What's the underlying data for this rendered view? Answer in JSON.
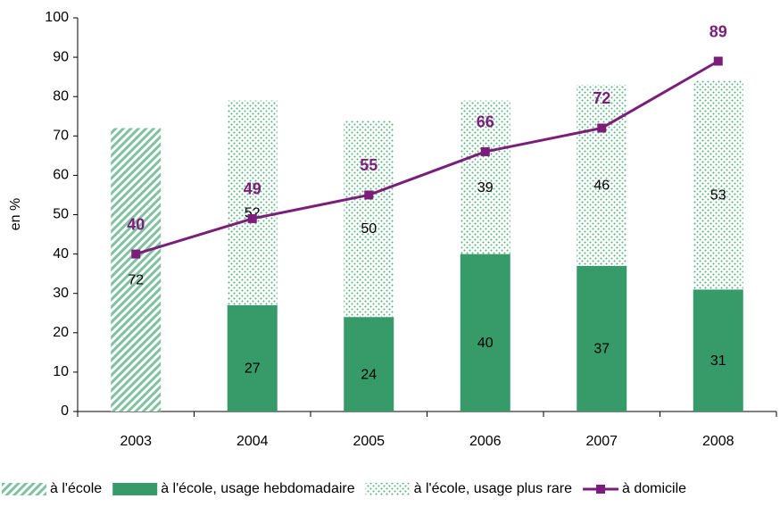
{
  "chart_data": {
    "type": "bar-line",
    "y_label": "en %",
    "categories": [
      "2003",
      "2004",
      "2005",
      "2006",
      "2007",
      "2008"
    ],
    "series": [
      {
        "name": "à l'école",
        "type": "bar",
        "pattern": "hatch",
        "color": "#7fc1a0",
        "values": [
          72,
          null,
          null,
          null,
          null,
          null
        ]
      },
      {
        "name": "à l'école, usage hebdomadaire",
        "type": "bar",
        "pattern": "solid",
        "color": "#379a69",
        "values": [
          null,
          27,
          24,
          40,
          37,
          31
        ]
      },
      {
        "name": "à l'école, usage plus rare",
        "type": "bar",
        "pattern": "dots",
        "color": "#52ad7c",
        "values": [
          null,
          52,
          50,
          39,
          46,
          53
        ]
      },
      {
        "name": "à domicile",
        "type": "line",
        "color": "#7a1e7a",
        "values": [
          40,
          49,
          55,
          66,
          72,
          89
        ]
      }
    ],
    "ylim": [
      0,
      100
    ],
    "yticks": [
      0,
      10,
      20,
      30,
      40,
      50,
      60,
      70,
      80,
      90,
      100
    ],
    "grid": false,
    "legend": "bottom"
  }
}
